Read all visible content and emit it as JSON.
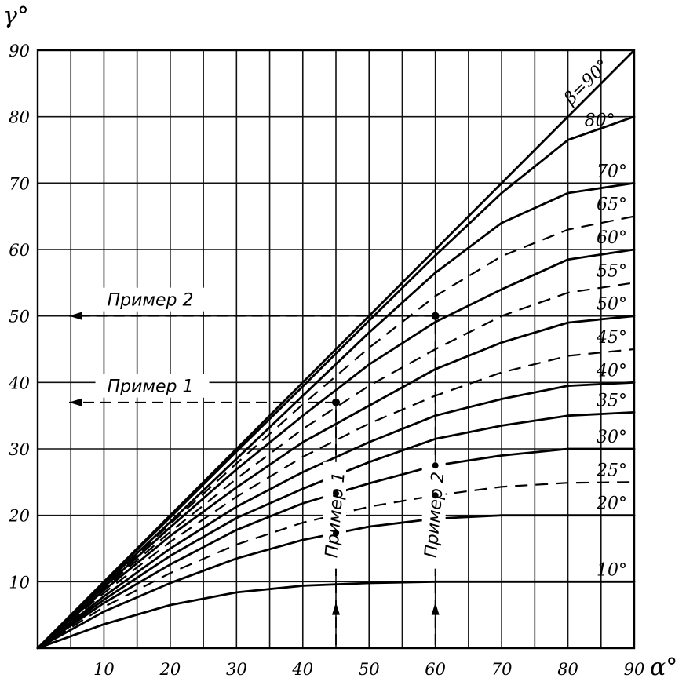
{
  "chart_data": {
    "type": "line",
    "title": "",
    "xlabel": "α°",
    "ylabel": "γ°",
    "xlim": [
      0,
      90
    ],
    "ylim": [
      0,
      90
    ],
    "grid": true,
    "x_ticks": [
      "10",
      "20",
      "30",
      "40",
      "50",
      "60",
      "70",
      "80",
      "90"
    ],
    "y_ticks": [
      "10",
      "20",
      "30",
      "40",
      "50",
      "60",
      "70",
      "80",
      "90"
    ],
    "diagonal_label": "β=90°",
    "series": [
      {
        "name": "80°",
        "dashed": false,
        "x": [
          0,
          10,
          20,
          30,
          40,
          50,
          60,
          70,
          80,
          90
        ],
        "y": [
          0,
          9.9,
          19.7,
          29.6,
          39.4,
          49.3,
          59.1,
          68.5,
          76.5,
          80
        ]
      },
      {
        "name": "70°",
        "dashed": false,
        "x": [
          0,
          10,
          20,
          30,
          40,
          50,
          60,
          70,
          80,
          90
        ],
        "y": [
          0,
          9.6,
          19.0,
          28.5,
          38.0,
          47.5,
          56.5,
          64.0,
          68.5,
          70
        ]
      },
      {
        "name": "65°",
        "dashed": true,
        "x": [
          0,
          10,
          20,
          30,
          40,
          50,
          60,
          70,
          80,
          90
        ],
        "y": [
          0,
          9.4,
          18.7,
          27.8,
          36.7,
          45.2,
          53.0,
          59.0,
          63.0,
          65
        ]
      },
      {
        "name": "60°",
        "dashed": false,
        "x": [
          0,
          10,
          20,
          30,
          40,
          50,
          60,
          70,
          80,
          90
        ],
        "y": [
          0,
          9.2,
          18.2,
          26.9,
          35.0,
          42.7,
          49.1,
          54.0,
          58.5,
          60
        ]
      },
      {
        "name": "55°",
        "dashed": true,
        "x": [
          0,
          10,
          20,
          30,
          40,
          50,
          60,
          70,
          80,
          90
        ],
        "y": [
          0,
          9.0,
          17.5,
          25.5,
          33.0,
          39.5,
          45.0,
          50.0,
          53.5,
          55
        ]
      },
      {
        "name": "50°",
        "dashed": false,
        "x": [
          0,
          10,
          20,
          30,
          40,
          50,
          60,
          70,
          80,
          90
        ],
        "y": [
          0,
          8.7,
          16.9,
          24.2,
          31.0,
          36.5,
          42.0,
          46.0,
          49.0,
          50
        ]
      },
      {
        "name": "45°",
        "dashed": true,
        "x": [
          0,
          10,
          20,
          30,
          40,
          50,
          60,
          70,
          80,
          90
        ],
        "y": [
          0,
          8.3,
          16.0,
          22.8,
          28.8,
          33.8,
          38.0,
          41.5,
          44.0,
          45
        ]
      },
      {
        "name": "40°",
        "dashed": false,
        "x": [
          0,
          10,
          20,
          30,
          40,
          50,
          60,
          70,
          80,
          90
        ],
        "y": [
          0,
          7.8,
          15.0,
          21.3,
          26.5,
          31.0,
          35.0,
          37.5,
          39.5,
          40
        ]
      },
      {
        "name": "35°",
        "dashed": false,
        "x": [
          0,
          10,
          20,
          30,
          40,
          50,
          60,
          70,
          80,
          90
        ],
        "y": [
          0,
          7.3,
          13.9,
          19.6,
          24.0,
          28.0,
          31.5,
          33.5,
          35.0,
          35.5
        ]
      },
      {
        "name": "30°",
        "dashed": false,
        "x": [
          0,
          10,
          20,
          30,
          40,
          50,
          60,
          70,
          80,
          90
        ],
        "y": [
          0,
          6.8,
          12.6,
          17.8,
          21.8,
          24.8,
          27.5,
          29.0,
          30.0,
          30
        ]
      },
      {
        "name": "25°",
        "dashed": true,
        "x": [
          0,
          10,
          20,
          30,
          40,
          50,
          60,
          70,
          80,
          90
        ],
        "y": [
          0,
          6.2,
          11.3,
          15.6,
          18.9,
          21.3,
          23.0,
          24.3,
          24.9,
          25
        ]
      },
      {
        "name": "20°",
        "dashed": false,
        "x": [
          0,
          10,
          20,
          30,
          40,
          50,
          60,
          70,
          80,
          90
        ],
        "y": [
          0,
          5.5,
          9.8,
          13.5,
          16.3,
          18.3,
          19.5,
          20.0,
          20.0,
          20
        ]
      },
      {
        "name": "10°",
        "dashed": false,
        "x": [
          0,
          10,
          20,
          30,
          40,
          50,
          60,
          70,
          80,
          90
        ],
        "y": [
          0,
          3.6,
          6.5,
          8.4,
          9.4,
          9.8,
          10.0,
          10.0,
          10.0,
          10
        ]
      }
    ],
    "examples": [
      {
        "label": "Пример 1",
        "alpha": 45,
        "gamma": 37,
        "beta": "60°"
      },
      {
        "label": "Пример 2",
        "alpha": 60,
        "gamma": 50,
        "beta": "65°"
      }
    ]
  }
}
